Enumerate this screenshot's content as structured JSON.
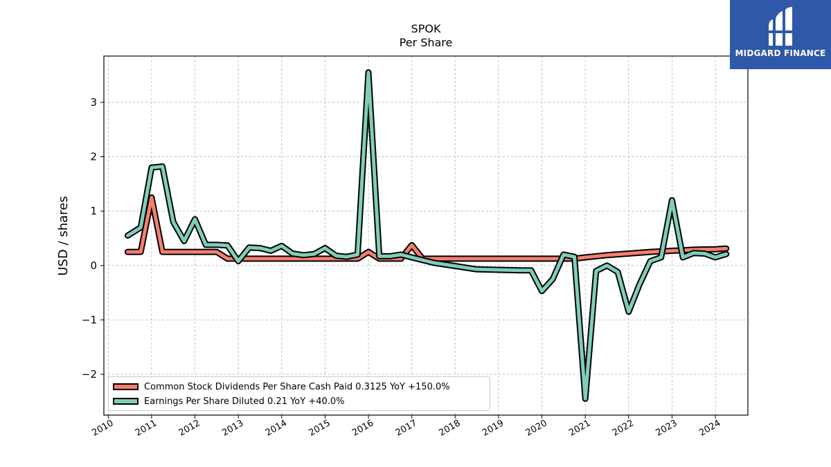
{
  "title": "SPOK",
  "subtitle": "Per  Share",
  "logo": {
    "text": "MIDGARD FINANCE",
    "bg_color": "#2f58a8"
  },
  "chart_data": {
    "type": "line",
    "title": "SPOK",
    "subtitle": "Per  Share",
    "ylabel": "USD / shares",
    "xlabel": "",
    "xlim": [
      2009.9,
      2024.75
    ],
    "ylim": [
      -2.75,
      3.85
    ],
    "x_ticks": [
      2010,
      2011,
      2012,
      2013,
      2014,
      2015,
      2016,
      2017,
      2018,
      2019,
      2020,
      2021,
      2022,
      2023,
      2024
    ],
    "y_ticks": [
      -2,
      -1,
      0,
      1,
      2,
      3
    ],
    "y_tick_labels": [
      "−2",
      "−1",
      "0",
      "1",
      "2",
      "3"
    ],
    "grid": true,
    "legend_position": "bottom-left",
    "series": [
      {
        "name": "Common Stock Dividends Per Share Cash Paid  0.3125 YoY +150.0%",
        "color": "#f47f6f",
        "x": [
          2010.45,
          2010.75,
          2011.0,
          2011.25,
          2011.5,
          2011.75,
          2012.0,
          2012.25,
          2012.5,
          2012.75,
          2013.0,
          2013.25,
          2013.5,
          2013.75,
          2014.0,
          2014.25,
          2014.5,
          2014.75,
          2015.0,
          2015.25,
          2015.5,
          2015.75,
          2016.0,
          2016.25,
          2016.5,
          2016.75,
          2017.0,
          2017.25,
          2017.5,
          2018.0,
          2018.5,
          2019.0,
          2019.5,
          2020.0,
          2020.5,
          2020.75,
          2021.0,
          2021.5,
          2022.0,
          2022.5,
          2023.0,
          2023.5,
          2024.0,
          2024.25
        ],
        "y": [
          0.25,
          0.25,
          1.25,
          0.25,
          0.25,
          0.25,
          0.25,
          0.25,
          0.25,
          0.125,
          0.125,
          0.125,
          0.125,
          0.125,
          0.125,
          0.125,
          0.125,
          0.125,
          0.125,
          0.125,
          0.125,
          0.125,
          0.25,
          0.125,
          0.125,
          0.125,
          0.375,
          0.125,
          0.125,
          0.125,
          0.125,
          0.125,
          0.125,
          0.125,
          0.125,
          0.125,
          0.15,
          0.19,
          0.22,
          0.25,
          0.27,
          0.29,
          0.3,
          0.3125
        ]
      },
      {
        "name": "Earnings Per Share Diluted  0.21 YoY +40.0%",
        "color": "#7fcdbb",
        "x": [
          2010.45,
          2010.75,
          2011.0,
          2011.25,
          2011.5,
          2011.75,
          2012.0,
          2012.25,
          2012.5,
          2012.75,
          2013.0,
          2013.25,
          2013.5,
          2013.75,
          2014.0,
          2014.25,
          2014.5,
          2014.75,
          2015.0,
          2015.25,
          2015.5,
          2015.75,
          2016.0,
          2016.25,
          2016.5,
          2016.75,
          2017.0,
          2017.5,
          2018.0,
          2018.5,
          2019.0,
          2019.5,
          2019.75,
          2020.0,
          2020.25,
          2020.5,
          2020.75,
          2021.0,
          2021.25,
          2021.5,
          2021.75,
          2022.0,
          2022.25,
          2022.5,
          2022.75,
          2023.0,
          2023.25,
          2023.5,
          2023.75,
          2024.0,
          2024.25
        ],
        "y": [
          0.55,
          0.7,
          1.8,
          1.82,
          0.8,
          0.45,
          0.85,
          0.38,
          0.38,
          0.37,
          0.08,
          0.33,
          0.32,
          0.27,
          0.36,
          0.22,
          0.19,
          0.21,
          0.32,
          0.18,
          0.16,
          0.2,
          3.55,
          0.17,
          0.17,
          0.2,
          0.15,
          0.05,
          -0.01,
          -0.07,
          -0.08,
          -0.09,
          -0.09,
          -0.47,
          -0.25,
          0.2,
          0.16,
          -2.45,
          -0.1,
          0.0,
          -0.12,
          -0.85,
          -0.35,
          0.08,
          0.15,
          1.2,
          0.15,
          0.23,
          0.22,
          0.15,
          0.21
        ]
      }
    ]
  }
}
